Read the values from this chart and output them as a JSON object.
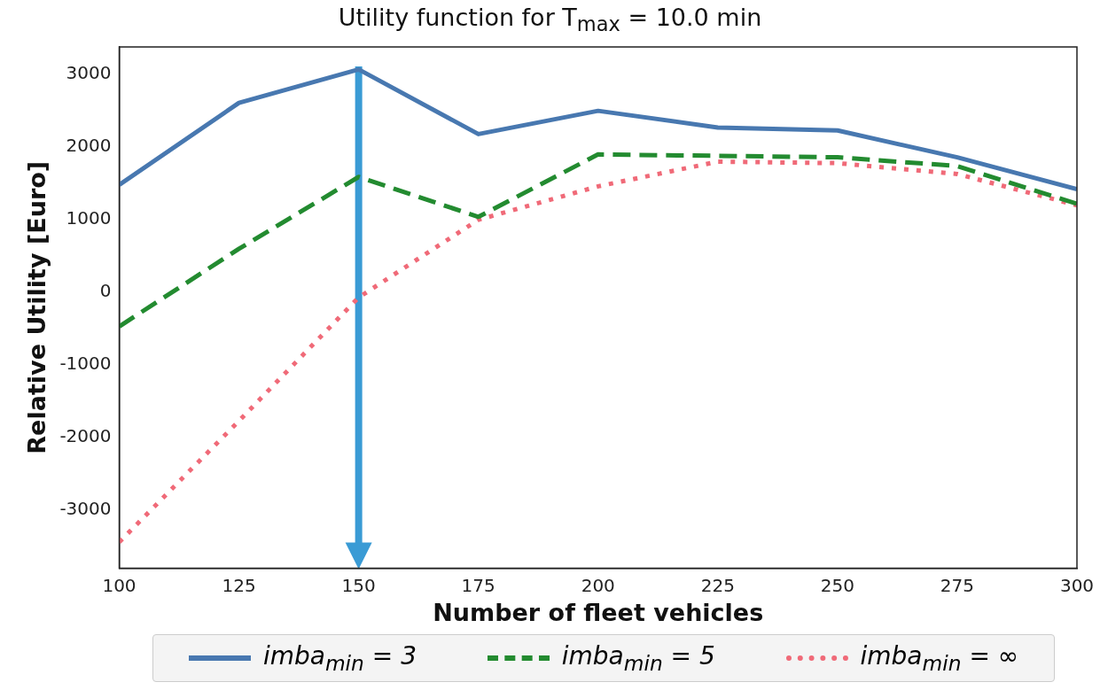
{
  "chart_data": {
    "type": "line",
    "title": "Utility function for T$_{max}$ = 10.0 min",
    "xlabel": "Number of fleet vehicles",
    "ylabel": "Relative Utility [Euro]",
    "x": [
      100,
      125,
      150,
      175,
      200,
      225,
      250,
      275,
      300
    ],
    "series": [
      {
        "name": "imba$_{min}$ = 3",
        "color": "#4878b0",
        "line_style": "solid",
        "values": [
          1480,
          2610,
          3070,
          2180,
          2500,
          2270,
          2230,
          1860,
          1420
        ]
      },
      {
        "name": "imba$_{min}$ = 5",
        "color": "#238b30",
        "line_style": "dashed",
        "values": [
          -470,
          600,
          1590,
          1040,
          1900,
          1880,
          1860,
          1740,
          1220
        ]
      },
      {
        "name": "imba$_{min}$ = ∞",
        "color": "#f06a78",
        "line_style": "dotted",
        "values": [
          -3440,
          -1770,
          -70,
          1000,
          1460,
          1800,
          1780,
          1630,
          1200
        ]
      }
    ],
    "xlim": [
      100,
      300
    ],
    "xticks": [
      100,
      125,
      150,
      175,
      200,
      225,
      250,
      275,
      300
    ],
    "ylim": [
      -3800,
      3380
    ],
    "yticks": [
      -3000,
      -2000,
      -1000,
      0,
      1000,
      2000,
      3000
    ],
    "grid": false,
    "legend": "bottom",
    "marker": "none"
  }
}
